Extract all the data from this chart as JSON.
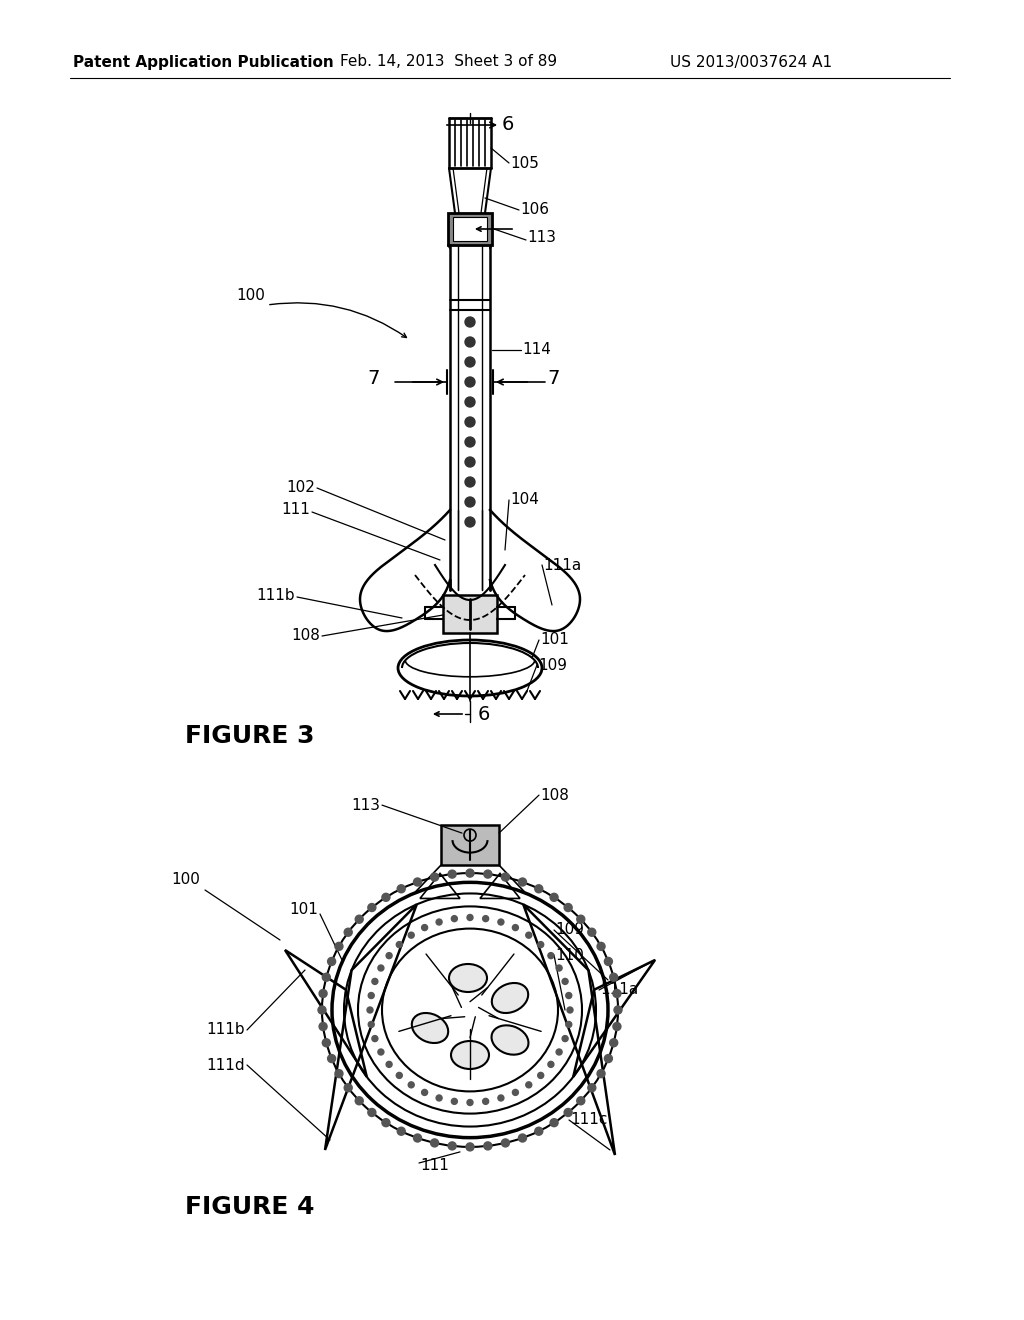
{
  "background_color": "#ffffff",
  "header_left": "Patent Application Publication",
  "header_center": "Feb. 14, 2013  Sheet 3 of 89",
  "header_right": "US 2013/0037624 A1",
  "fig3_label": "FIGURE 3",
  "fig4_label": "FIGURE 4",
  "line_color": "#000000",
  "text_color": "#000000"
}
